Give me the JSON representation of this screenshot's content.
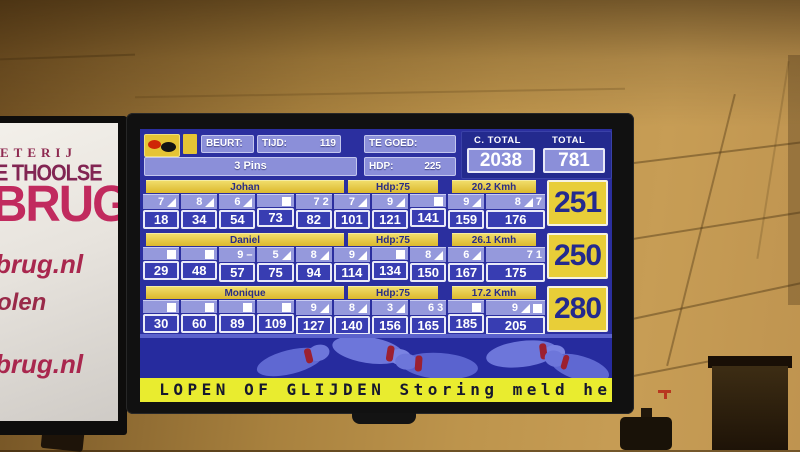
{
  "sign": {
    "small_caps_line": "ETERIJ",
    "name_line": "E THOOLSE",
    "brand_line": "BRUG",
    "url_line_1": "brug.nl",
    "partial_line": "olen",
    "url_line_2": "brug.nl"
  },
  "scoreboard": {
    "header": {
      "beurt_label": "BEURT:",
      "tijd_label": "TIJD:",
      "tijd_value": "119",
      "tegoed_label": "TE GOED:",
      "pins_value": "3 Pins",
      "hdp_label": "HDP:",
      "hdp_value": "225",
      "ctotal_label": "C. TOTAL",
      "ctotal_value": "2038",
      "total_label": "TOTAL",
      "total_value": "781"
    },
    "players": [
      {
        "name": "Johan",
        "hdp": "Hdp:75",
        "speed": "20.2 Kmh",
        "total": "251",
        "frames": [
          {
            "marks": [
              "7",
              "/"
            ],
            "cum": "18"
          },
          {
            "marks": [
              "8",
              "/"
            ],
            "cum": "34"
          },
          {
            "marks": [
              "6",
              "/"
            ],
            "cum": "54"
          },
          {
            "marks": [
              "X"
            ],
            "cum": "73"
          },
          {
            "marks": [
              "7",
              "2"
            ],
            "cum": "82"
          },
          {
            "marks": [
              "7",
              "/"
            ],
            "cum": "101"
          },
          {
            "marks": [
              "9",
              "/"
            ],
            "cum": "121"
          },
          {
            "marks": [
              "X"
            ],
            "cum": "141"
          },
          {
            "marks": [
              "9",
              "/"
            ],
            "cum": "159"
          },
          {
            "marks": [
              "8",
              "/",
              "7"
            ],
            "cum": "176"
          }
        ]
      },
      {
        "name": "Daniel",
        "hdp": "Hdp:75",
        "speed": "26.1 Kmh",
        "total": "250",
        "frames": [
          {
            "marks": [
              "X"
            ],
            "cum": "29"
          },
          {
            "marks": [
              "X"
            ],
            "cum": "48"
          },
          {
            "marks": [
              "9",
              "-"
            ],
            "cum": "57"
          },
          {
            "marks": [
              "5",
              "/"
            ],
            "cum": "75"
          },
          {
            "marks": [
              "8",
              "/"
            ],
            "cum": "94"
          },
          {
            "marks": [
              "9",
              "/"
            ],
            "cum": "114"
          },
          {
            "marks": [
              "X"
            ],
            "cum": "134"
          },
          {
            "marks": [
              "8",
              "/"
            ],
            "cum": "150"
          },
          {
            "marks": [
              "6",
              "/"
            ],
            "cum": "167"
          },
          {
            "marks": [
              "7",
              "1"
            ],
            "cum": "175"
          }
        ]
      },
      {
        "name": "Monique",
        "hdp": "Hdp:75",
        "speed": "17.2 Kmh",
        "total": "280",
        "frames": [
          {
            "marks": [
              "X"
            ],
            "cum": "30"
          },
          {
            "marks": [
              "X"
            ],
            "cum": "60"
          },
          {
            "marks": [
              "X"
            ],
            "cum": "89"
          },
          {
            "marks": [
              "X"
            ],
            "cum": "109"
          },
          {
            "marks": [
              "9",
              "/"
            ],
            "cum": "127"
          },
          {
            "marks": [
              "8",
              "/"
            ],
            "cum": "140"
          },
          {
            "marks": [
              "3",
              "/"
            ],
            "cum": "156"
          },
          {
            "marks": [
              "6",
              "3"
            ],
            "cum": "165"
          },
          {
            "marks": [
              "X"
            ],
            "cum": "185"
          },
          {
            "marks": [
              "9",
              "/",
              "X"
            ],
            "cum": "205"
          }
        ]
      }
    ],
    "ticker": "N LOPEN OF GLIJDEN Storing meld he"
  },
  "icons": {
    "strike": "white-square",
    "spare": "white-right-triangle",
    "turn_balls": [
      "red-ball",
      "black-ball"
    ]
  },
  "colors": {
    "screen_background": "#2b2f9f",
    "panel_lavender": "#8b8fd9",
    "score_yellow": "#e8ce38",
    "ticker_yellow": "#e9ec2f",
    "score_text_navy": "#232a8e",
    "ticker_text": "#16182e",
    "sign_brand_pink": "#c12a5e",
    "pin_blue": "#6d76da",
    "pin_ring_red": "#9c2030"
  }
}
